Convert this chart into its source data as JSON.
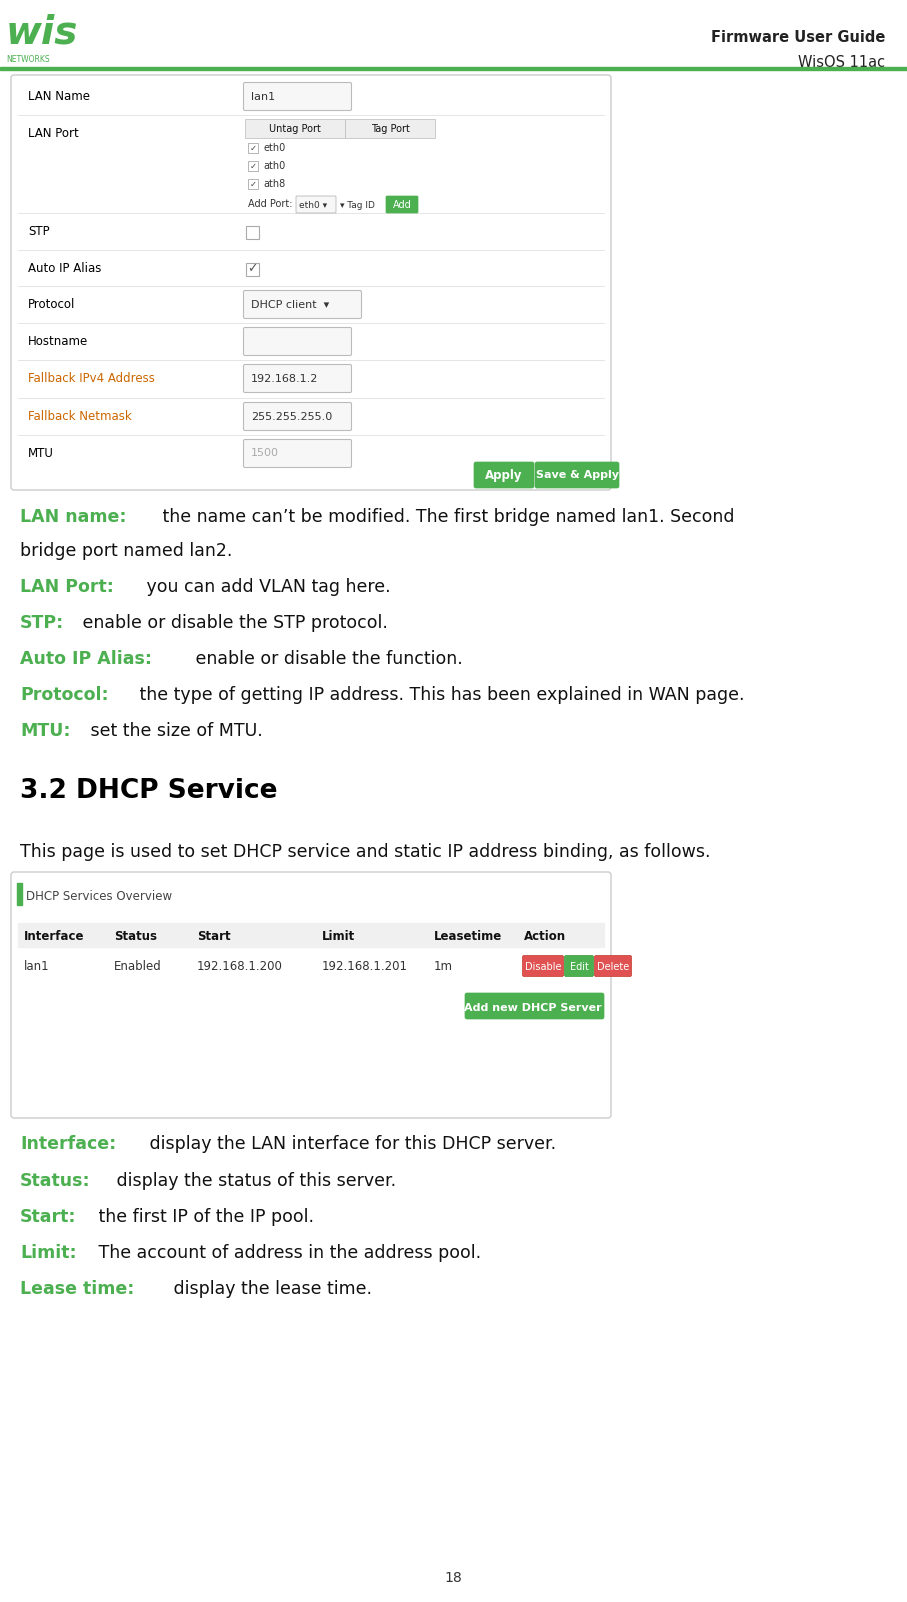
{
  "page_bg": "#ffffff",
  "header_line_color": "#4caf50",
  "title_right": "Firmware User Guide",
  "subtitle_right": "WisOS 11ac",
  "green_color": "#4caf50",
  "red_color": "#e05252",
  "orange_color": "#cc6600",
  "page_number": "18",
  "descriptions": [
    {
      "key": "LAN name:",
      "text": " the name can’t be modified. The first bridge named lan1. Second"
    },
    {
      "key": "",
      "text": "bridge port named lan2."
    },
    {
      "key": "LAN Port:",
      "text": " you can add VLAN tag here."
    },
    {
      "key": "STP:",
      "text": " enable or disable the STP protocol."
    },
    {
      "key": "Auto IP Alias:",
      "text": " enable or disable the function."
    },
    {
      "key": "Protocol:",
      "text": " the type of getting IP address. This has been explained in WAN page."
    },
    {
      "key": "MTU:",
      "text": " set the size of MTU."
    }
  ],
  "section_title": "3.2 DHCP Service",
  "section_intro": "This page is used to set DHCP service and static IP address binding, as follows.",
  "dhcp_table_header": [
    "Interface",
    "Status",
    "Start",
    "Limit",
    "Leasetime",
    "Action"
  ],
  "dhcp_table_row": [
    "lan1",
    "Enabled",
    "192.168.1.200",
    "192.168.1.201",
    "1m",
    ""
  ],
  "dhcp_table_title": "DHCP Services Overview",
  "dhcp_descriptions": [
    {
      "key": "Interface:",
      "text": " display the LAN interface for this DHCP server."
    },
    {
      "key": "Status:",
      "text": " display the status of this server."
    },
    {
      "key": "Start:",
      "text": " the first IP of the IP pool."
    },
    {
      "key": "Limit:",
      "text": " The account of address in the address pool."
    },
    {
      "key": "Lease time:",
      "text": " display the lease time."
    }
  ]
}
